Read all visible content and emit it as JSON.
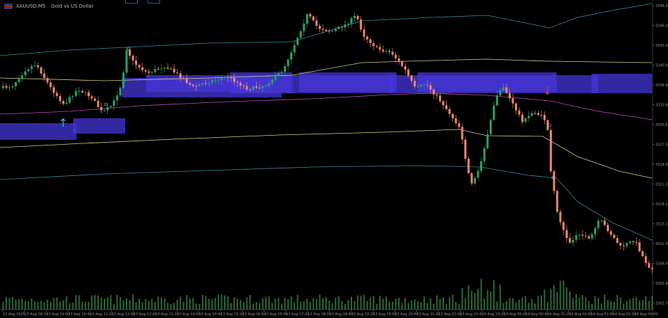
{
  "window": {
    "symbol": "XAUUSD",
    "timeframe": "M5",
    "description": "Gold vs US Dollar"
  },
  "colors": {
    "background": "#000000",
    "bull": "#2fa36b",
    "bear": "#f08a74",
    "zone": "#4636d8",
    "volume": "#2f6b3c",
    "signal_up": "#27c7e6",
    "signal_down": "#e8333a",
    "ma_magenta": "#c04fc0",
    "ma_yellow": "#d8d88a",
    "band_blue": "#3a8fa6"
  },
  "chart_data": {
    "type": "candlestick",
    "y_ticks": [
      "3349.35",
      "3346.20",
      "3343.05",
      "3340.00",
      "3336.90",
      "3333.80",
      "3330.65",
      "3327.50",
      "3324.40",
      "3321.30",
      "3318.20",
      "3315.10",
      "3312.00",
      "3308.90",
      "3305.80",
      "3302.70"
    ],
    "x_ticks": [
      "13 Aug 2025",
      "13 Aug 09:20",
      "13 Aug 10:00",
      "13 Aug 10:40",
      "13 Aug 11:20",
      "13 Aug 12:00",
      "13 Aug 12:40",
      "13 Aug 13:20",
      "13 Aug 14:00",
      "13 Aug 14:40",
      "13 Aug 15:20",
      "13 Aug 16:00",
      "13 Aug 16:40",
      "13 Aug 17:20",
      "13 Aug 18:00",
      "13 Aug 18:40",
      "13 Aug 19:20",
      "13 Aug 20:00",
      "13 Aug 20:40",
      "13 Aug 21:20",
      "13 Aug 22:00",
      "13 Aug 22:40",
      "13 Aug 23:20",
      "14 Aug 00:00",
      "14 Aug 00:40",
      "14 Aug 01:20",
      "14 Aug 02:00",
      "14 Aug 02:40",
      "14 Aug 03:20",
      "14 Aug 04:00"
    ],
    "signals": [
      {
        "type": "buy",
        "label": "↑"
      },
      {
        "type": "sell",
        "label": "↓"
      }
    ]
  }
}
